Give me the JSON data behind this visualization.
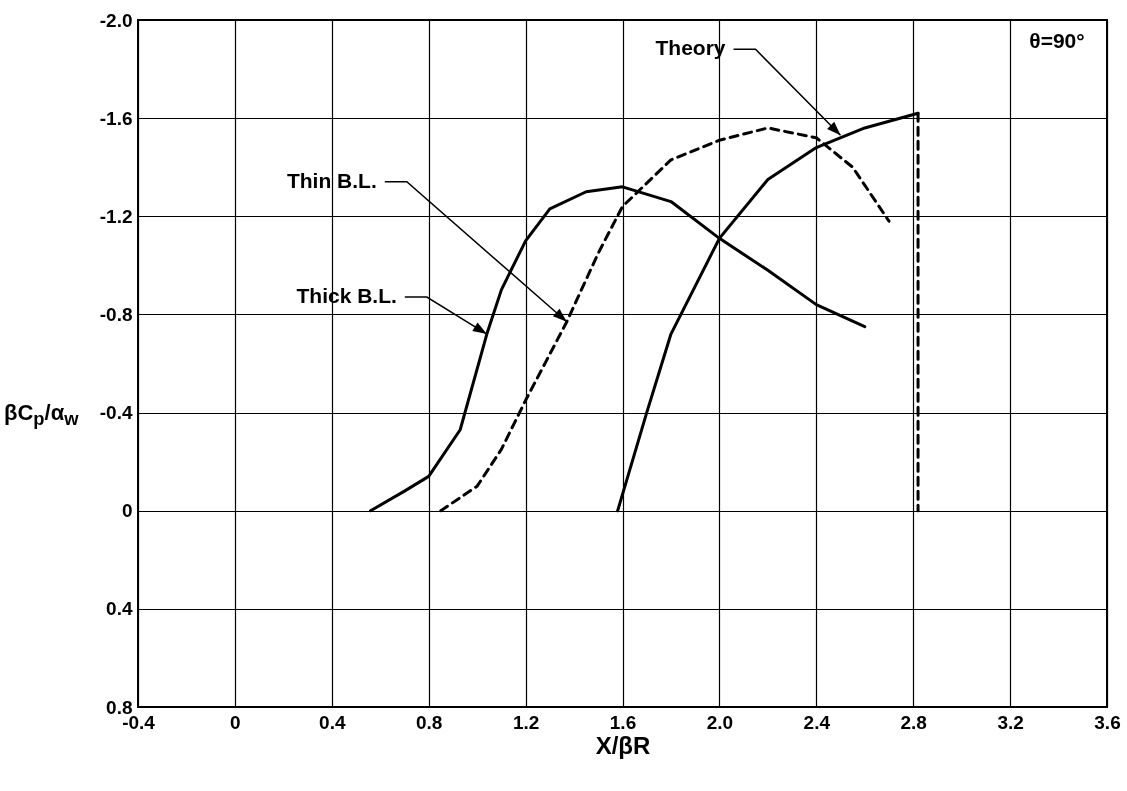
{
  "chart_data": {
    "type": "line",
    "xlabel": "X/βR",
    "ylabel": "βC$_{p}$/α$_{w}$",
    "xlim": [
      -0.4,
      3.6
    ],
    "ylim": [
      0.8,
      -2.0
    ],
    "xticks": [
      -0.4,
      {
        "value": 0,
        "label": "0"
      },
      0.4,
      0.8,
      1.2,
      1.6,
      {
        "value": 2.0,
        "label": "2.0"
      },
      2.4,
      2.8,
      3.2,
      3.6
    ],
    "yticks": [
      {
        "value": -2.0,
        "label": "-2.0"
      },
      -1.6,
      -1.2,
      -0.8,
      -0.4,
      {
        "value": 0,
        "label": "0"
      },
      0.4,
      0.8
    ],
    "grid": true,
    "marker": "none",
    "series": [
      {
        "color": "#000000",
        "line_style": "solid",
        "x": [
          0.56,
          0.7,
          0.8,
          0.93,
          1.04,
          1.1,
          1.2,
          1.3,
          1.45,
          1.6,
          1.8,
          2.0,
          2.2,
          2.4,
          2.6
        ],
        "values": [
          0,
          -0.08,
          -0.14,
          -0.33,
          -0.72,
          -0.9,
          -1.1,
          -1.23,
          -1.3,
          -1.32,
          -1.26,
          -1.11,
          -0.98,
          -0.84,
          -0.75
        ]
      },
      {
        "color": "#000000",
        "line_style": "dashed",
        "x": [
          0.85,
          1.0,
          1.1,
          1.2,
          1.37,
          1.5,
          1.6,
          1.8,
          2.0,
          2.2,
          2.4,
          2.55,
          2.7
        ],
        "values": [
          0,
          -0.1,
          -0.25,
          -0.45,
          -0.77,
          -1.05,
          -1.24,
          -1.43,
          -1.51,
          -1.56,
          -1.52,
          -1.4,
          -1.18
        ]
      },
      {
        "color": "#000000",
        "line_style": "solid",
        "x": [
          1.58,
          1.7,
          1.8,
          2.0,
          2.2,
          2.4,
          2.6,
          2.82
        ],
        "values": [
          0,
          -0.4,
          -0.72,
          -1.11,
          -1.35,
          -1.48,
          -1.56,
          -1.62
        ]
      },
      {
        "color": "#000000",
        "line_style": "dashed",
        "x": [
          2.82,
          2.82
        ],
        "values": [
          -1.62,
          0
        ]
      }
    ],
    "annotations": [
      {
        "text": "Theory",
        "x": 2.5,
        "y": -1.53
      },
      {
        "text": "Thin B.L.",
        "x": 1.37,
        "y": -0.77
      },
      {
        "text": "Thick B.L.",
        "x": 1.04,
        "y": -0.72
      },
      "θ=90°"
    ]
  }
}
